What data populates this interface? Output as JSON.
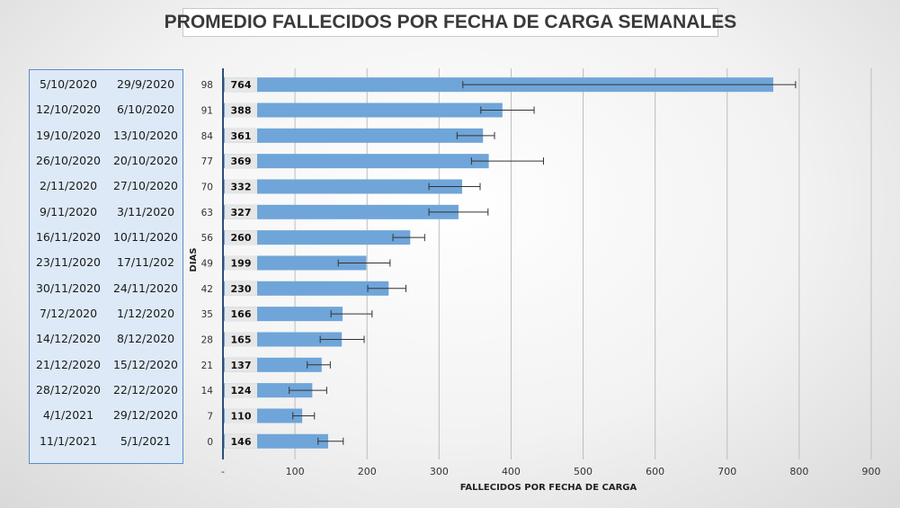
{
  "chart_data": {
    "type": "bar",
    "orientation": "horizontal",
    "title": "PROMEDIO FALLECIDOS POR FECHA DE CARGA SEMANALES",
    "xlabel": "FALLECIDOS POR FECHA DE CARGA",
    "ylabel": "DIAS",
    "xlim": [
      0,
      900
    ],
    "x_ticks": [
      "-",
      "100",
      "200",
      "300",
      "400",
      "500",
      "600",
      "700",
      "800",
      "900"
    ],
    "grid": "vertical",
    "bar_color": "#6fa5d8",
    "categories": [
      "98",
      "91",
      "84",
      "77",
      "70",
      "63",
      "56",
      "49",
      "42",
      "35",
      "28",
      "21",
      "14",
      "7",
      "0"
    ],
    "values": [
      764,
      388,
      361,
      369,
      332,
      327,
      260,
      199,
      230,
      166,
      165,
      137,
      124,
      110,
      146
    ],
    "value_labels": [
      "764",
      "388",
      "361",
      "369",
      "332",
      "327",
      "260",
      "199",
      "230",
      "166",
      "165",
      "137",
      "124",
      "110",
      "146"
    ],
    "error_bars": [
      [
        333,
        795
      ],
      [
        358,
        432
      ],
      [
        325,
        377
      ],
      [
        345,
        445
      ],
      [
        286,
        357
      ],
      [
        286,
        368
      ],
      [
        236,
        280
      ],
      [
        160,
        232
      ],
      [
        201,
        254
      ],
      [
        150,
        207
      ],
      [
        135,
        196
      ],
      [
        117,
        149
      ],
      [
        92,
        144
      ],
      [
        97,
        127
      ],
      [
        132,
        167
      ]
    ],
    "date_ranges": [
      {
        "end": "5/10/2020",
        "start": "29/9/2020"
      },
      {
        "end": "12/10/2020",
        "start": "6/10/2020"
      },
      {
        "end": "19/10/2020",
        "start": "13/10/2020"
      },
      {
        "end": "26/10/2020",
        "start": "20/10/2020"
      },
      {
        "end": "2/11/2020",
        "start": "27/10/2020"
      },
      {
        "end": "9/11/2020",
        "start": "3/11/2020"
      },
      {
        "end": "16/11/2020",
        "start": "10/11/2020"
      },
      {
        "end": "23/11/2020",
        "start": "17/11/202"
      },
      {
        "end": "30/11/2020",
        "start": "24/11/2020"
      },
      {
        "end": "7/12/2020",
        "start": "1/12/2020"
      },
      {
        "end": "14/12/2020",
        "start": "8/12/2020"
      },
      {
        "end": "21/12/2020",
        "start": "15/12/2020"
      },
      {
        "end": "28/12/2020",
        "start": "22/12/2020"
      },
      {
        "end": "4/1/2021",
        "start": "29/12/2020"
      },
      {
        "end": "11/1/2021",
        "start": "5/1/2021"
      }
    ]
  }
}
